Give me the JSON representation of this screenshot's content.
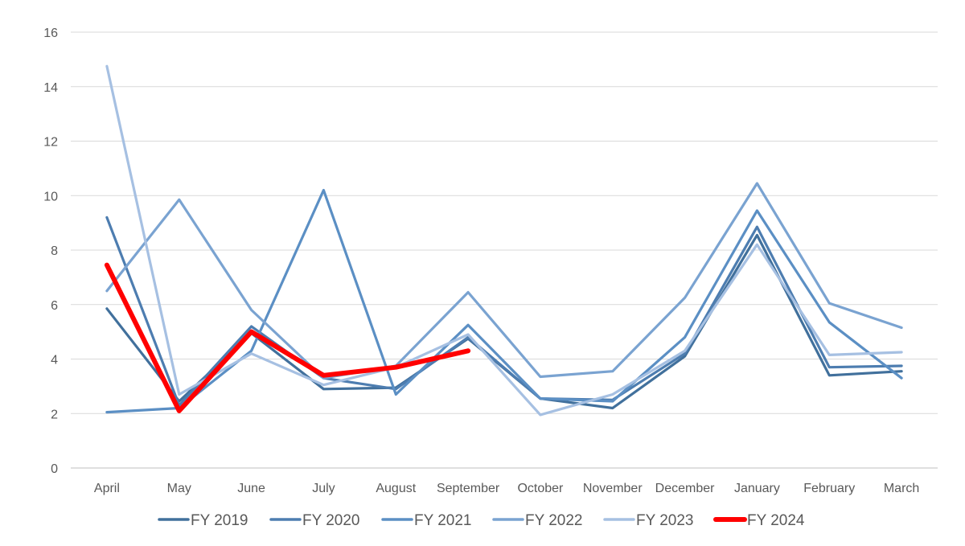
{
  "chart_data": {
    "type": "line",
    "title": "",
    "xlabel": "",
    "ylabel": "",
    "ylim": [
      0,
      16
    ],
    "yticks": [
      0,
      2,
      4,
      6,
      8,
      10,
      12,
      14,
      16
    ],
    "grid": true,
    "legend_position": "bottom",
    "categories": [
      "April",
      "May",
      "June",
      "July",
      "August",
      "September",
      "October",
      "November",
      "December",
      "January",
      "February",
      "March"
    ],
    "series": [
      {
        "name": "FY 2019",
        "color": "#41709c",
        "values": [
          5.85,
          2.45,
          4.95,
          2.9,
          2.95,
          4.75,
          2.55,
          2.2,
          4.1,
          8.55,
          3.4,
          3.55
        ]
      },
      {
        "name": "FY 2020",
        "color": "#4d7db0",
        "values": [
          9.2,
          2.3,
          5.2,
          3.3,
          2.9,
          4.8,
          2.55,
          2.5,
          4.2,
          8.85,
          3.7,
          3.75
        ]
      },
      {
        "name": "FY 2021",
        "color": "#5b8fc4",
        "values": [
          2.05,
          2.2,
          4.3,
          10.2,
          2.7,
          5.25,
          2.55,
          2.45,
          4.8,
          9.45,
          5.35,
          3.3
        ]
      },
      {
        "name": "FY 2022",
        "color": "#7aa3d1",
        "values": [
          6.5,
          9.85,
          5.8,
          3.3,
          3.75,
          6.45,
          3.35,
          3.55,
          6.25,
          10.45,
          6.05,
          5.15
        ]
      },
      {
        "name": "FY 2023",
        "color": "#a6c0e2",
        "values": [
          14.75,
          2.7,
          4.2,
          3.05,
          3.7,
          4.9,
          1.95,
          2.7,
          4.3,
          8.2,
          4.15,
          4.25
        ]
      },
      {
        "name": "FY 2024",
        "color": "#ff0000",
        "values": [
          7.45,
          2.1,
          5.0,
          3.4,
          3.7,
          4.3,
          null,
          null,
          null,
          null,
          null,
          null
        ]
      }
    ]
  }
}
